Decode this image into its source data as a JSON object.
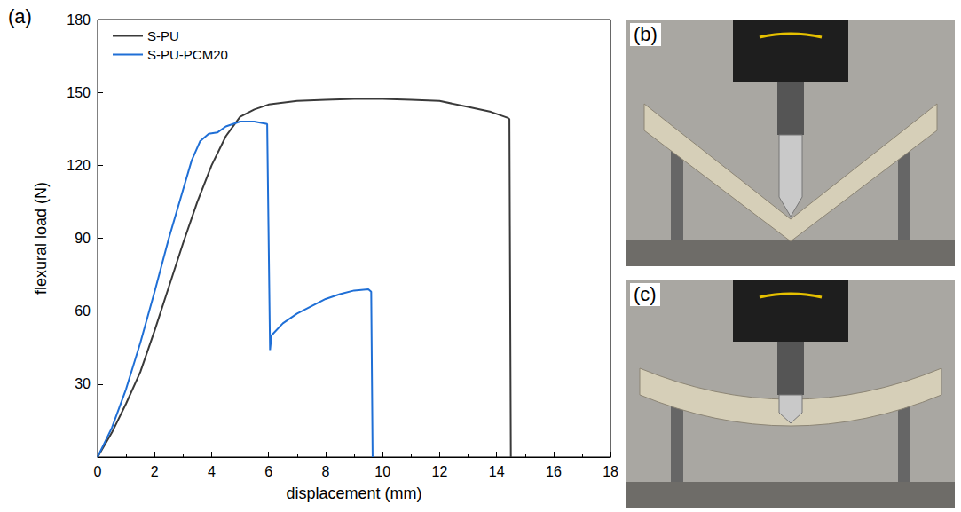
{
  "chart_data": {
    "type": "line",
    "annotations": [
      "(a)"
    ],
    "x_label": "displacement (mm)",
    "y_label": "flexural load (N)",
    "xlim": [
      0,
      18
    ],
    "xticks": [
      0,
      2,
      4,
      6,
      8,
      10,
      12,
      14,
      16,
      18
    ],
    "ylim": [
      0,
      180
    ],
    "yticks": [
      30,
      60,
      90,
      120,
      150,
      180
    ],
    "grid": false,
    "legend": "upper left",
    "series": [
      {
        "name": "S-PU",
        "color": "#3a3a3a",
        "x": [
          0,
          0.5,
          1,
          1.5,
          2,
          2.5,
          3,
          3.5,
          4,
          4.5,
          5,
          5.5,
          6,
          7,
          8,
          9,
          10,
          11,
          12,
          13,
          13.8,
          14.4,
          14.45,
          14.5
        ],
        "values": [
          0,
          10,
          22,
          35,
          52,
          70,
          88,
          105,
          120,
          132,
          140,
          143,
          145,
          146.5,
          147,
          147.3,
          147.3,
          147,
          146.5,
          144,
          142,
          139.5,
          139,
          0
        ]
      },
      {
        "name": "S-PU-PCM20",
        "color": "#1f6fd6",
        "x": [
          0,
          0.5,
          1,
          1.5,
          2,
          2.5,
          3,
          3.3,
          3.6,
          3.9,
          4.2,
          4.5,
          5,
          5.5,
          5.95,
          6.05,
          6.1,
          6.5,
          7,
          7.5,
          8,
          8.5,
          9,
          9.5,
          9.6,
          9.65
        ],
        "values": [
          0,
          12,
          28,
          47,
          68,
          90,
          110,
          122,
          130,
          133,
          133.5,
          136,
          138,
          138,
          137,
          44,
          50,
          55,
          59,
          62,
          65,
          67,
          68.5,
          69,
          68,
          0
        ]
      }
    ]
  },
  "photos": [
    {
      "label": "(b)"
    },
    {
      "label": "(c)"
    }
  ]
}
